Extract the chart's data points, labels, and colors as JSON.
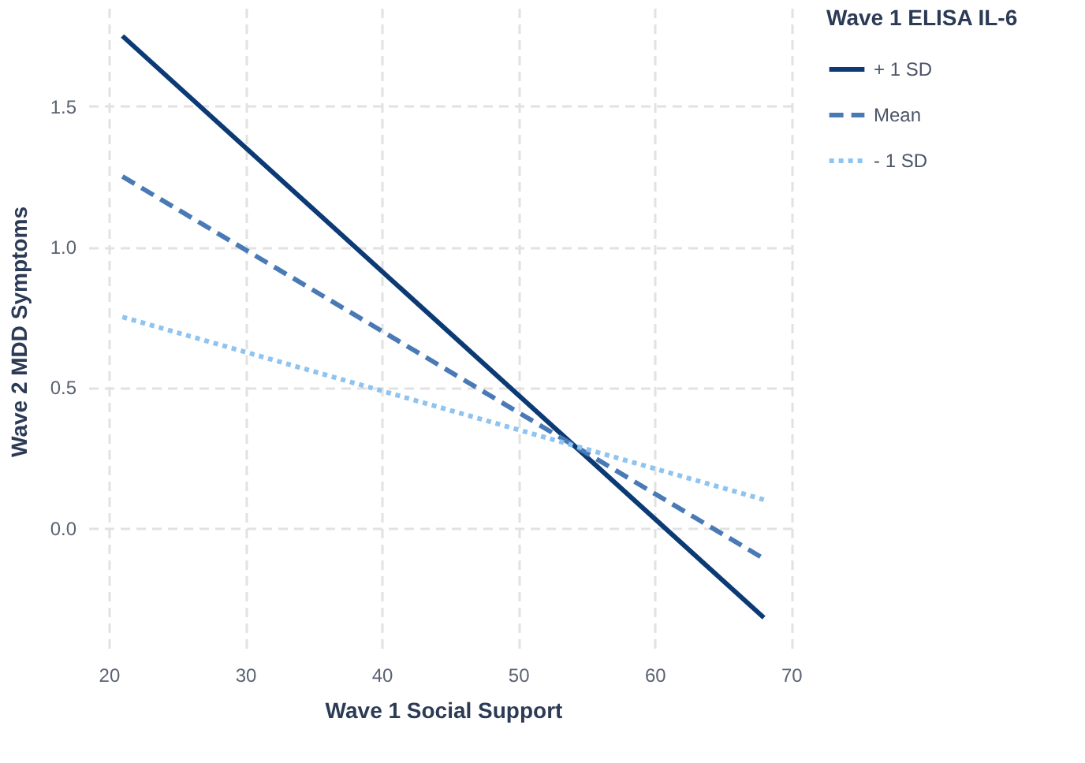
{
  "chart_data": {
    "type": "line",
    "xlabel": "Wave 1 Social Support",
    "ylabel": "Wave 2 MDD Symptoms",
    "legend_title": "Wave 1 ELISA IL-6",
    "x": [
      21,
      68
    ],
    "series": [
      {
        "name": "+ 1 SD",
        "color": "#0b3a75",
        "values": [
          1.75,
          -0.32
        ],
        "line_style": "solid"
      },
      {
        "name": "Mean",
        "color": "#4a7ab5",
        "values": [
          1.25,
          -0.11
        ],
        "line_style": "dashed"
      },
      {
        "name": "- 1 SD",
        "color": "#8fc3f0",
        "values": [
          0.75,
          0.1
        ],
        "line_style": "dotted"
      }
    ],
    "xlim": [
      18.5,
      70.5
    ],
    "ylim": [
      -0.45,
      1.85
    ],
    "xticks": [
      20,
      30,
      40,
      50,
      60,
      70
    ],
    "yticks": [
      {
        "value": 0,
        "label": "0.0"
      },
      0.5,
      {
        "value": 1,
        "label": "1.0"
      },
      1.5
    ],
    "grid": true,
    "legend": "right",
    "marker": "none"
  }
}
